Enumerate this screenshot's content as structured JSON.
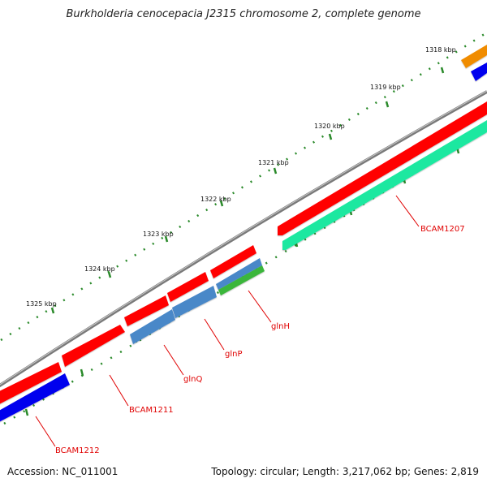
{
  "title": "Burkholderia cenocepacia J2315 chromosome 2, complete genome",
  "accession": "Accession: NC_011001",
  "summary": "Topology: circular; Length: 3,217,062 bp; Genes: 2,819",
  "kbp_labels": [
    "1318 kbp",
    "1319 kbp",
    "1320 kbp",
    "1321 kbp",
    "1322 kbp",
    "1323 kbp",
    "1324 kbp",
    "1325 kbp"
  ],
  "gene_labels": [
    "BCAM1207",
    "glnH",
    "glnP",
    "glnQ",
    "BCAM1211",
    "BCAM1212"
  ],
  "colors": {
    "backbone": "#7a7a7a",
    "forward_gene": "#ff0000",
    "reverse_gene": "#0000ee",
    "bcam1207_track": "#1ee8a0",
    "glnH_track": "#3ab63a",
    "glnP_glnQ_track": "#4a88c8",
    "orange_feature": "#f08c00",
    "ticks": "#2a8a2a",
    "labels": "#e00000"
  }
}
